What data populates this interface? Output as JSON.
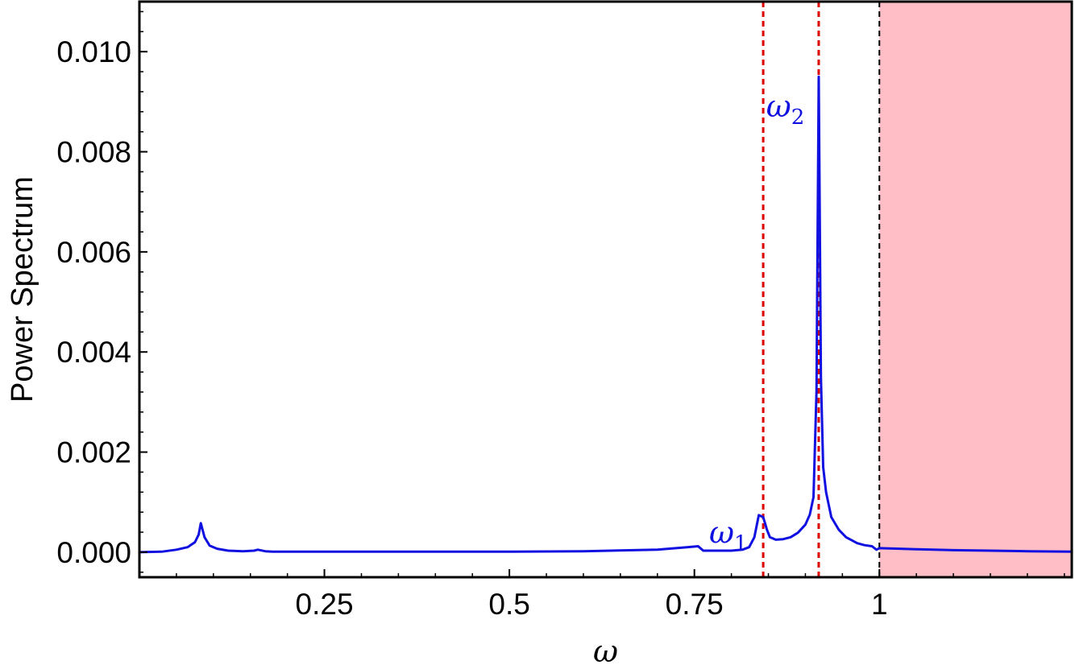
{
  "chart_data": {
    "type": "line",
    "title": "",
    "xlabel": "ω",
    "ylabel": "Power Spectrum",
    "xlim": [
      0.0,
      1.26
    ],
    "ylim": [
      -0.0005,
      0.011
    ],
    "x_ticks": [
      {
        "value": 0.25,
        "label": "0.25"
      },
      {
        "value": 0.5,
        "label": "0.5"
      },
      {
        "value": 0.75,
        "label": "0.75"
      },
      {
        "value": 1.0,
        "label": "1"
      }
    ],
    "y_ticks": [
      {
        "value": 0.0,
        "label": "0.000"
      },
      {
        "value": 0.002,
        "label": "0.002"
      },
      {
        "value": 0.004,
        "label": "0.004"
      },
      {
        "value": 0.006,
        "label": "0.006"
      },
      {
        "value": 0.008,
        "label": "0.008"
      },
      {
        "value": 0.01,
        "label": "0.010"
      }
    ],
    "grid": false,
    "series": [
      {
        "color": "#1010e0",
        "x": [
          0.0,
          0.03,
          0.05,
          0.065,
          0.075,
          0.08,
          0.083,
          0.088,
          0.095,
          0.105,
          0.12,
          0.14,
          0.155,
          0.16,
          0.17,
          0.18,
          0.25,
          0.5,
          0.6,
          0.7,
          0.74,
          0.755,
          0.762,
          0.768,
          0.775,
          0.8,
          0.815,
          0.824,
          0.831,
          0.837,
          0.843,
          0.848,
          0.852,
          0.86,
          0.87,
          0.88,
          0.89,
          0.9,
          0.906,
          0.911,
          0.915,
          0.918,
          0.921,
          0.924,
          0.928,
          0.935,
          0.945,
          0.955,
          0.97,
          0.98,
          0.99,
          0.996,
          1.0,
          1.05,
          1.1,
          1.15,
          1.2,
          1.26
        ],
        "y": [
          0.0,
          1e-05,
          5e-05,
          0.0001,
          0.0002,
          0.00035,
          0.00058,
          0.0003,
          0.00013,
          7e-05,
          3e-05,
          2e-05,
          3e-05,
          5e-05,
          2e-05,
          1e-05,
          1e-05,
          1e-05,
          2e-05,
          5e-05,
          0.0001,
          0.00012,
          3e-05,
          3e-05,
          3e-05,
          3e-05,
          5e-05,
          0.0001,
          0.0003,
          0.00074,
          0.0007,
          0.00045,
          0.0003,
          0.00025,
          0.00026,
          0.0003,
          0.00039,
          0.00055,
          0.00075,
          0.0011,
          0.0032,
          0.0095,
          0.0035,
          0.0017,
          0.0012,
          0.0007,
          0.00045,
          0.0003,
          0.00018,
          0.00014,
          0.00012,
          5e-05,
          8e-05,
          6e-05,
          4e-05,
          3e-05,
          2e-05,
          1e-05
        ]
      }
    ],
    "vertical_lines": [
      {
        "x": 0.843,
        "color": "#dd0000",
        "style": "dashed"
      },
      {
        "x": 0.918,
        "color": "#dd0000",
        "style": "dashed"
      },
      {
        "x": 1.0,
        "color": "#000000",
        "style": "dashed"
      }
    ],
    "shaded_region": {
      "x_from": 1.0,
      "x_to": 1.26,
      "color": "#ffbec5"
    },
    "annotations": [
      {
        "text": "ω",
        "subscript": "1",
        "x": 0.77,
        "y": 0.00018,
        "color": "#1010e0"
      },
      {
        "text": "ω",
        "subscript": "2",
        "x": 0.847,
        "y": 0.0087,
        "color": "#1010e0"
      }
    ]
  }
}
